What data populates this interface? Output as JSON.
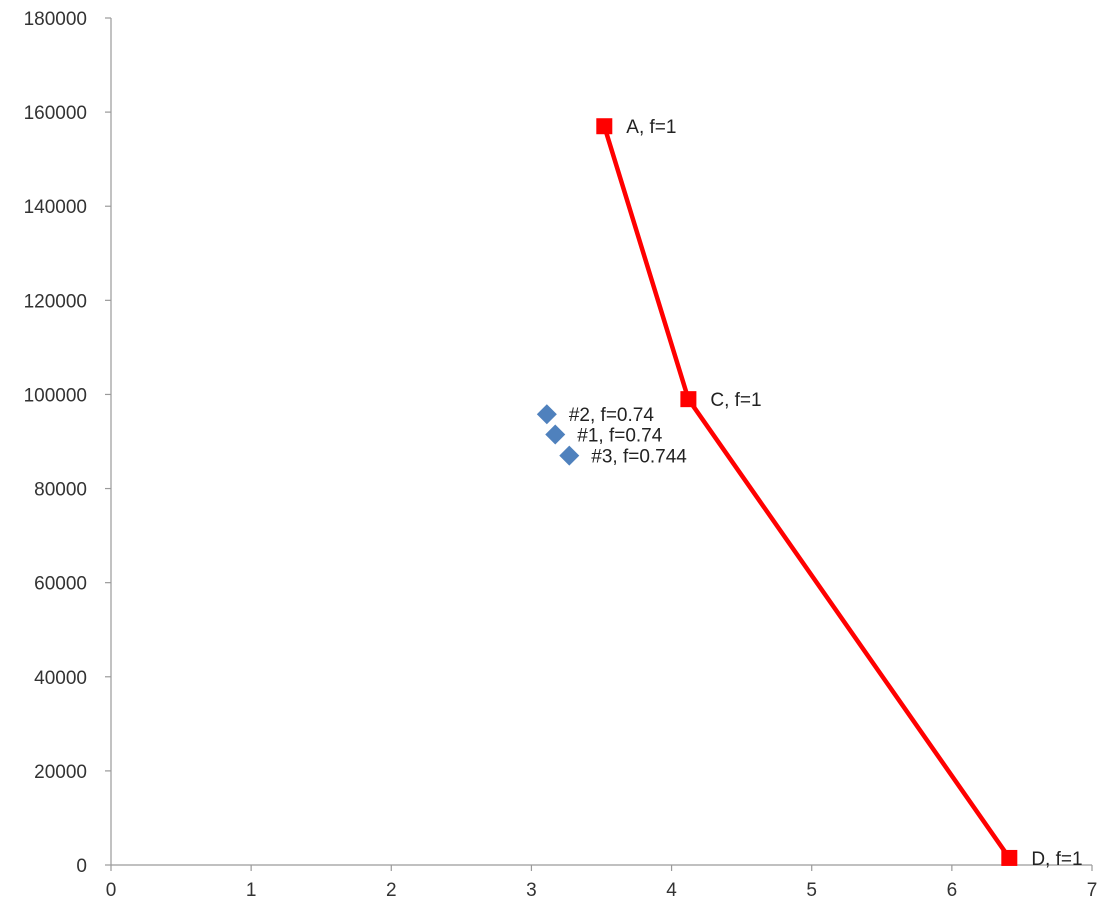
{
  "chart_data": {
    "type": "scatter",
    "title": "",
    "xlabel": "",
    "ylabel": "",
    "xlim": [
      0,
      7
    ],
    "ylim": [
      0,
      180000
    ],
    "x_ticks": [
      0,
      1,
      2,
      3,
      4,
      5,
      6,
      7
    ],
    "y_ticks": [
      0,
      20000,
      40000,
      60000,
      80000,
      100000,
      120000,
      140000,
      160000,
      180000
    ],
    "grid": false,
    "legend": "none",
    "series": [
      {
        "line": true,
        "marker": "square",
        "color": "#ff0000",
        "points": [
          {
            "x": 3.52,
            "y": 157000,
            "label": "A, f=1"
          },
          {
            "x": 4.12,
            "y": 99000,
            "label": "C, f=1"
          },
          {
            "x": 6.41,
            "y": 1500,
            "label": "D, f=1"
          }
        ]
      },
      {
        "line": false,
        "marker": "diamond",
        "color": "#4f81bd",
        "points": [
          {
            "x": 3.17,
            "y": 91500,
            "label": "#1, f=0.74"
          },
          {
            "x": 3.11,
            "y": 95800,
            "label": "#2, f=0.74"
          },
          {
            "x": 3.27,
            "y": 87000,
            "label": "#3, f=0.744"
          }
        ]
      }
    ]
  }
}
